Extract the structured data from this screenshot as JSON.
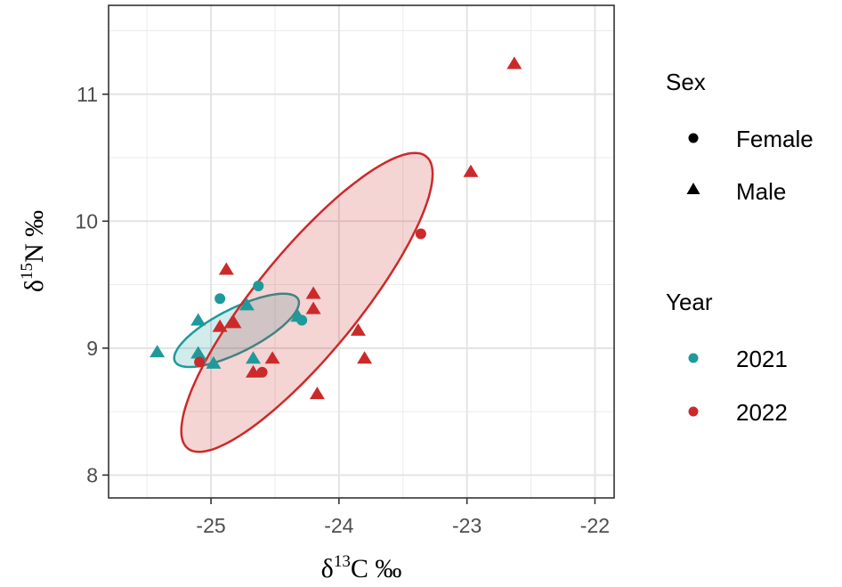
{
  "chart_data": {
    "type": "scatter",
    "title": "",
    "xlabel": {
      "prefix": "δ",
      "sup": "13",
      "rest": "C ‰"
    },
    "ylabel": {
      "prefix": "δ",
      "sup": "15",
      "rest": "N ‰"
    },
    "xlim": [
      -25.8,
      -21.85
    ],
    "ylim": [
      7.82,
      11.7
    ],
    "xticks": [
      -25,
      -24,
      -23,
      -22
    ],
    "xtick_labels": [
      "-25",
      "-24",
      "-23",
      "-22"
    ],
    "yticks": [
      8,
      9,
      10,
      11
    ],
    "ytick_labels": [
      "8",
      "9",
      "10",
      "11"
    ],
    "grid": true,
    "legend_position": "right",
    "colors": {
      "2021": "#1f9a9a",
      "2022": "#cc2a2a"
    },
    "legends": [
      {
        "title": "Sex",
        "items": [
          {
            "label": "Female",
            "shape": "circle"
          },
          {
            "label": "Male",
            "shape": "triangle"
          }
        ]
      },
      {
        "title": "Year",
        "items": [
          {
            "label": "2021",
            "color": "#1f9a9a"
          },
          {
            "label": "2022",
            "color": "#cc2a2a"
          }
        ]
      }
    ],
    "series": [
      {
        "name": "2021",
        "color": "#1f9a9a",
        "points": [
          {
            "x": -25.42,
            "y": 8.97,
            "sex": "Male"
          },
          {
            "x": -25.1,
            "y": 9.22,
            "sex": "Male"
          },
          {
            "x": -25.1,
            "y": 8.96,
            "sex": "Male"
          },
          {
            "x": -25.08,
            "y": 8.9,
            "sex": "Female"
          },
          {
            "x": -24.98,
            "y": 8.88,
            "sex": "Male"
          },
          {
            "x": -24.93,
            "y": 9.39,
            "sex": "Female"
          },
          {
            "x": -24.72,
            "y": 9.34,
            "sex": "Male"
          },
          {
            "x": -24.67,
            "y": 8.92,
            "sex": "Male"
          },
          {
            "x": -24.63,
            "y": 9.49,
            "sex": "Female"
          },
          {
            "x": -24.32,
            "y": 9.25,
            "sex": "Male"
          },
          {
            "x": -24.29,
            "y": 9.22,
            "sex": "Female"
          }
        ]
      },
      {
        "name": "2022",
        "color": "#cc2a2a",
        "points": [
          {
            "x": -25.09,
            "y": 8.89,
            "sex": "Female"
          },
          {
            "x": -24.93,
            "y": 9.17,
            "sex": "Male"
          },
          {
            "x": -24.88,
            "y": 9.62,
            "sex": "Male"
          },
          {
            "x": -24.82,
            "y": 9.2,
            "sex": "Male"
          },
          {
            "x": -24.67,
            "y": 8.81,
            "sex": "Male"
          },
          {
            "x": -24.6,
            "y": 8.81,
            "sex": "Female"
          },
          {
            "x": -24.52,
            "y": 8.92,
            "sex": "Male"
          },
          {
            "x": -24.2,
            "y": 9.43,
            "sex": "Male"
          },
          {
            "x": -24.2,
            "y": 9.31,
            "sex": "Male"
          },
          {
            "x": -24.17,
            "y": 8.64,
            "sex": "Male"
          },
          {
            "x": -23.85,
            "y": 9.14,
            "sex": "Male"
          },
          {
            "x": -23.8,
            "y": 8.92,
            "sex": "Male"
          },
          {
            "x": -23.36,
            "y": 9.9,
            "sex": "Female"
          },
          {
            "x": -22.97,
            "y": 10.39,
            "sex": "Male"
          },
          {
            "x": -22.63,
            "y": 11.24,
            "sex": "Male"
          }
        ]
      }
    ],
    "ellipses": [
      {
        "group": "2021",
        "color": "#1f9a9a",
        "cx": -24.8,
        "cy": 9.14,
        "rx": 0.54,
        "ry": 0.171,
        "angle_deg": 27
      },
      {
        "group": "2022",
        "color": "#cc2a2a",
        "cx": -24.25,
        "cy": 9.36,
        "rx": 1.48,
        "ry": 0.4,
        "angle_deg": 51
      }
    ]
  }
}
